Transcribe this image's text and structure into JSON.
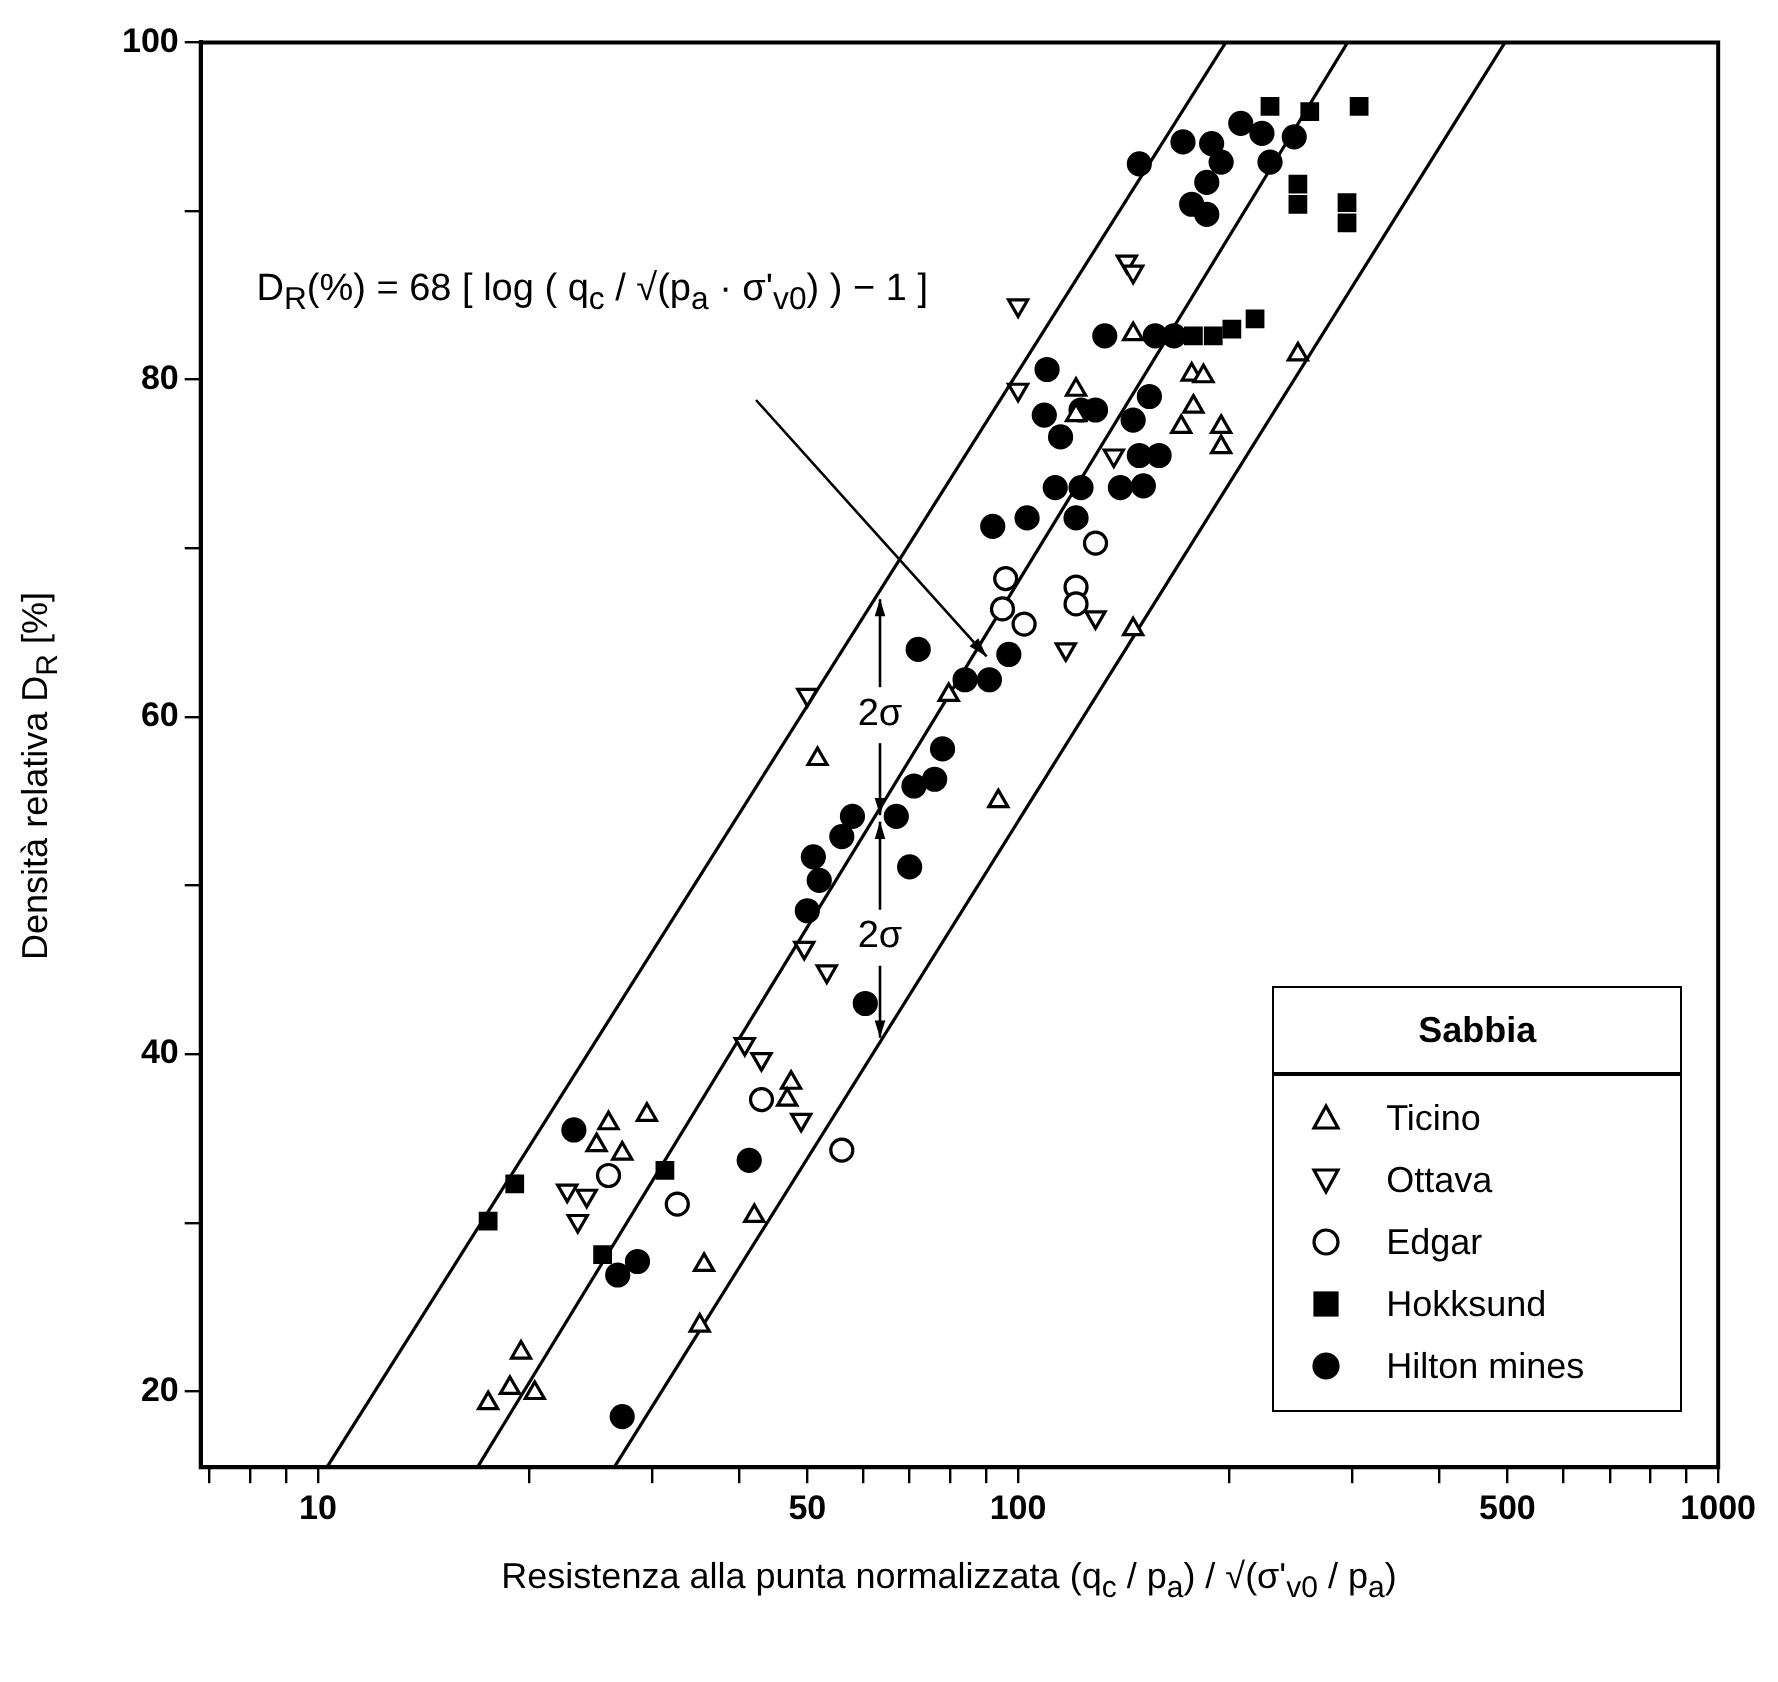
{
  "chart_data": {
    "type": "scatter",
    "xlabel": "Resistenza alla punta normalizzata  (q$_{c}$ / p$_{a}$) / √(σ'$_{v0}$ / p$_{a}$)",
    "ylabel": "Densità relativa   D$_{R}$ [%]",
    "legend_title": "Sabbia",
    "legend": "bottom right",
    "log": "x",
    "grid": false,
    "xlim": [
      6.8,
      1000
    ],
    "ylim": [
      15.5,
      100
    ],
    "xticks": [
      {
        "value": 7,
        "label": null
      },
      {
        "value": 8,
        "label": null
      },
      {
        "value": 9,
        "label": null
      },
      10,
      {
        "value": 20,
        "label": null
      },
      {
        "value": 30,
        "label": null
      },
      {
        "value": 40,
        "label": null
      },
      50,
      {
        "value": 60,
        "label": null
      },
      {
        "value": 70,
        "label": null
      },
      {
        "value": 80,
        "label": null
      },
      {
        "value": 90,
        "label": null
      },
      100,
      {
        "value": 200,
        "label": null
      },
      {
        "value": 300,
        "label": null
      },
      {
        "value": 400,
        "label": null
      },
      500,
      {
        "value": 600,
        "label": null
      },
      {
        "value": 700,
        "label": null
      },
      {
        "value": 800,
        "label": null
      },
      {
        "value": 900,
        "label": null
      },
      1000
    ],
    "yticks": [
      20,
      {
        "value": 30,
        "label": null
      },
      40,
      {
        "value": 50,
        "label": null
      },
      60,
      {
        "value": 70,
        "label": null
      },
      80,
      {
        "value": 90,
        "label": null
      },
      100
    ],
    "annotations": [
      "D$_{R}$(%) = 68 [ log ( q$_{c}$ / √(p$_{a}$ · σ'$_{v0}$) ) − 1 ]",
      {
        "text": "2σ",
        "x": 63.5,
        "y": 60.1
      },
      {
        "text": "2σ",
        "x": 63.5,
        "y": 46.9
      }
    ],
    "series": [
      {
        "name": "Ticino",
        "type": "scatter",
        "color": "#000000",
        "marker": "triangle-open",
        "x": [
          51.7,
          79.6,
          93.7,
          26,
          29.5,
          25,
          27.2,
          47.4,
          46.8,
          42,
          35.6,
          35.1,
          19.5,
          17.5,
          18.8,
          20.4,
          146,
          251,
          121,
          121,
          177,
          184,
          178,
          171,
          195,
          195,
          146
        ],
        "values": [
          57.5,
          61.3,
          55,
          35.9,
          36.4,
          34.6,
          34.1,
          38.3,
          37.3,
          30.4,
          27.5,
          23.9,
          22.3,
          19.3,
          20.2,
          19.9,
          82.7,
          81.5,
          79.4,
          77.9,
          80.3,
          80.2,
          78.4,
          77.2,
          77.2,
          76,
          65.2
        ]
      },
      {
        "name": "Ottava",
        "type": "scatter",
        "color": "#000000",
        "marker": "triangle-down-open",
        "x": [
          143,
          146,
          100,
          100,
          137,
          129,
          117,
          50,
          49.5,
          53.3,
          40.7,
          43,
          49,
          22.7,
          24.2,
          23.5
        ],
        "values": [
          87,
          86.4,
          84.4,
          79.4,
          75.5,
          65.9,
          64,
          61.3,
          46.3,
          44.9,
          40.6,
          39.7,
          36.1,
          31.9,
          31.6,
          30.1
        ]
      },
      {
        "name": "Edgar",
        "type": "scatter",
        "color": "#000000",
        "marker": "circle-open",
        "x": [
          129,
          96,
          95,
          102,
          121,
          121,
          43,
          26,
          32.6,
          56
        ],
        "values": [
          70.3,
          68.2,
          66.4,
          65.5,
          67.7,
          66.7,
          37.3,
          32.8,
          31.1,
          34.3
        ]
      },
      {
        "name": "Hokksund",
        "type": "scatter",
        "color": "#000000",
        "marker": "square",
        "x": [
          19.1,
          17.5,
          31.3,
          25.5,
          229,
          261,
          307,
          251,
          251,
          295,
          295,
          218,
          202,
          190,
          178
        ],
        "values": [
          32.3,
          30.1,
          33.1,
          28.1,
          96.2,
          95.9,
          96.2,
          91.6,
          90.4,
          90.5,
          89.3,
          83.6,
          83,
          82.6,
          82.6
        ]
      },
      {
        "name": "Hilton mines",
        "type": "scatter",
        "color": "#000000",
        "marker": "circle",
        "x": [
          149,
          172,
          189,
          208,
          223,
          248,
          195,
          229,
          186,
          177,
          186,
          110,
          109,
          129,
          123,
          115,
          154,
          146,
          149,
          159,
          113,
          123,
          140,
          151,
          121,
          103,
          92,
          97,
          84,
          91,
          72,
          78,
          76,
          71,
          67,
          58,
          56,
          51,
          52,
          70,
          50,
          60.5,
          23.2,
          41.3,
          26.8,
          28.6,
          27.2,
          133,
          157,
          167
        ],
        "values": [
          92.8,
          94.1,
          94,
          95.2,
          94.6,
          94.4,
          92.9,
          92.9,
          91.7,
          90.4,
          89.8,
          80.6,
          77.9,
          78.2,
          78.2,
          76.6,
          79,
          77.6,
          75.5,
          75.5,
          73.6,
          73.6,
          73.6,
          73.7,
          71.8,
          71.8,
          71.3,
          63.7,
          62.2,
          62.2,
          64,
          58.1,
          56.3,
          55.9,
          54.1,
          54.1,
          52.9,
          51.7,
          50.3,
          51.1,
          48.5,
          43,
          35.5,
          33.7,
          26.9,
          27.7,
          18.5,
          82.6,
          82.6,
          82.6
        ]
      },
      {
        "type": "line",
        "color": "#000000",
        "marker": "none",
        "line_style": "solid",
        "x": [
          10.3,
          198
        ],
        "values": [
          15.5,
          100
        ]
      },
      {
        "type": "line",
        "color": "#000000",
        "marker": "none",
        "line_style": "solid",
        "x": [
          16.9,
          295.6
        ],
        "values": [
          15.5,
          100
        ]
      },
      {
        "type": "line",
        "color": "#000000",
        "marker": "none",
        "line_style": "solid",
        "x": [
          26.5,
          496
        ],
        "values": [
          15.5,
          100
        ]
      }
    ]
  }
}
